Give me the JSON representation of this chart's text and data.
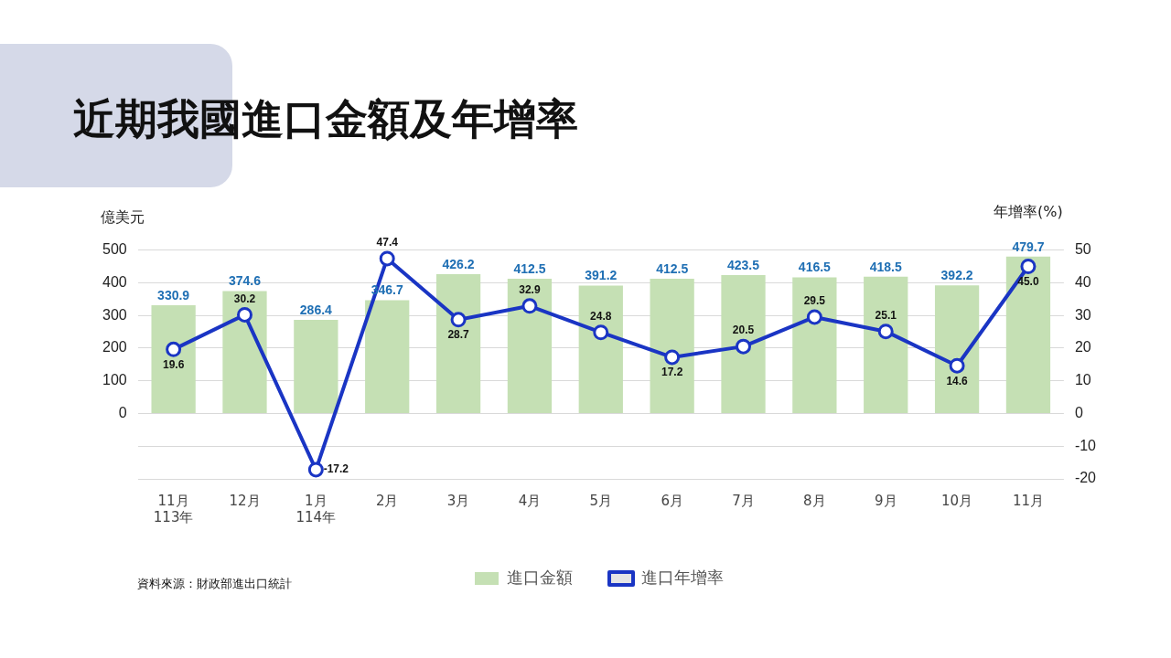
{
  "chart_data": {
    "type": "bar",
    "title": "近期我國進口金額及年增率",
    "ylabel": "億美元",
    "y2label": "年增率(%)",
    "categories": [
      "11月\n113年",
      "12月",
      "1月\n114年",
      "2月",
      "3月",
      "4月",
      "5月",
      "6月",
      "7月",
      "8月",
      "9月",
      "10月",
      "11月"
    ],
    "series": [
      {
        "name": "進口金額",
        "color": "#c5e0b4",
        "values": [
          330.9,
          374.6,
          286.4,
          346.7,
          426.2,
          412.5,
          391.2,
          412.5,
          423.5,
          416.5,
          418.5,
          392.2,
          479.7
        ]
      },
      {
        "name": "進口年增率",
        "type": "line",
        "axis": "y2",
        "color": "#1a35c4",
        "values": [
          19.6,
          30.2,
          -17.2,
          47.4,
          28.7,
          32.9,
          24.8,
          17.2,
          20.5,
          29.5,
          25.1,
          14.6,
          45.0
        ],
        "value_labels": [
          "19.6",
          "30.2",
          "-17.2",
          "47.4",
          "28.7",
          "32.9",
          "24.8",
          "17.2",
          "20.5",
          "29.5",
          "25.1",
          "14.6",
          "45.0"
        ]
      }
    ],
    "ylim": [
      -200,
      500
    ],
    "yticks": [
      {
        "value": -200,
        "label": null
      },
      {
        "value": -100,
        "label": null
      },
      0,
      100,
      200,
      300,
      400,
      500
    ],
    "y2lim": [
      -20,
      50
    ],
    "y2ticks": [
      -20,
      -10,
      0,
      10,
      20,
      30,
      40,
      50
    ],
    "grid": "y",
    "legend": "bottom",
    "marker": "circle",
    "line_style": "solid",
    "data_labels": true,
    "annotations": [
      "資料來源：財政部進出口統計"
    ]
  }
}
